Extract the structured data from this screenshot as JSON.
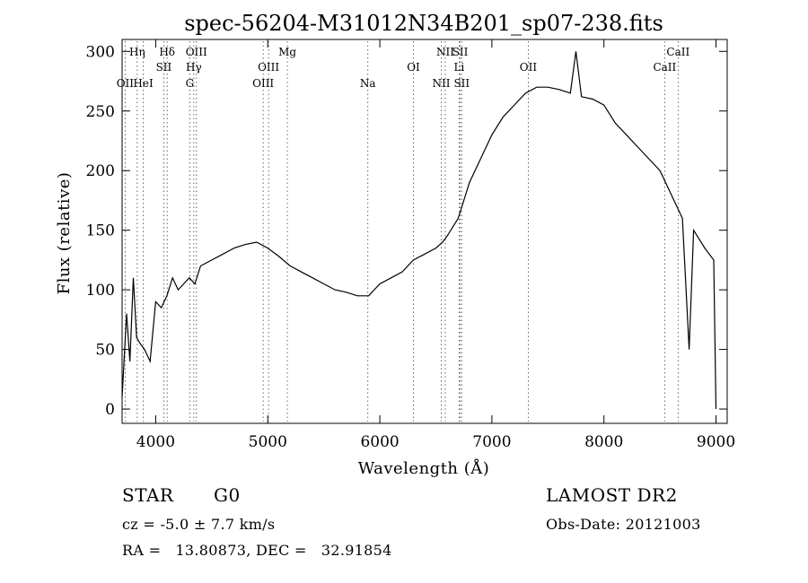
{
  "chart_data": {
    "type": "line",
    "title": "spec-56204-M31012N34B201_sp07-238.fits",
    "xlabel": "Wavelength (Å)",
    "ylabel": "Flux (relative)",
    "xlim": [
      3700,
      9100
    ],
    "ylim": [
      -12,
      310
    ],
    "x_ticks": [
      4000,
      5000,
      6000,
      7000,
      8000,
      9000
    ],
    "y_ticks": [
      0,
      50,
      100,
      150,
      200,
      250,
      300
    ],
    "grid": false,
    "series": [
      {
        "x": [
          3700,
          3740,
          3770,
          3800,
          3830,
          3860,
          3900,
          3950,
          4000,
          4050,
          4100,
          4150,
          4200,
          4250,
          4300,
          4350,
          4400,
          4500,
          4600,
          4700,
          4800,
          4900,
          5000,
          5100,
          5200,
          5300,
          5400,
          5500,
          5600,
          5700,
          5800,
          5900,
          6000,
          6100,
          6200,
          6300,
          6400,
          6500,
          6560,
          6600,
          6700,
          6800,
          6900,
          7000,
          7100,
          7200,
          7300,
          7400,
          7500,
          7600,
          7700,
          7750,
          7800,
          7900,
          8000,
          8100,
          8200,
          8300,
          8400,
          8500,
          8600,
          8700,
          8760,
          8800,
          8900,
          8980,
          9000
        ],
        "y": [
          10,
          80,
          40,
          110,
          60,
          55,
          50,
          40,
          90,
          85,
          95,
          110,
          100,
          105,
          110,
          105,
          120,
          125,
          130,
          135,
          138,
          140,
          135,
          128,
          120,
          115,
          110,
          105,
          100,
          98,
          95,
          95,
          105,
          110,
          115,
          125,
          130,
          135,
          140,
          145,
          160,
          190,
          210,
          230,
          245,
          255,
          265,
          270,
          270,
          268,
          265,
          300,
          262,
          260,
          255,
          240,
          230,
          220,
          210,
          200,
          180,
          160,
          50,
          150,
          135,
          125,
          0
        ]
      }
    ],
    "line_labels": [
      {
        "text": "Hη",
        "wl": 3835,
        "row": 1
      },
      {
        "text": "OII",
        "wl": 3727,
        "row": 3
      },
      {
        "text": "HeI",
        "wl": 3889,
        "row": 3
      },
      {
        "text": "Hδ",
        "wl": 4102,
        "row": 1
      },
      {
        "text": "SII",
        "wl": 4072,
        "row": 2
      },
      {
        "text": "OIII",
        "wl": 4363,
        "row": 1
      },
      {
        "text": "Hγ",
        "wl": 4340,
        "row": 2
      },
      {
        "text": "G",
        "wl": 4304,
        "row": 3
      },
      {
        "text": "Mg",
        "wl": 5175,
        "row": 1
      },
      {
        "text": "OIII",
        "wl": 5007,
        "row": 2
      },
      {
        "text": "OIII",
        "wl": 4959,
        "row": 3
      },
      {
        "text": "Na",
        "wl": 5893,
        "row": 3
      },
      {
        "text": "NII",
        "wl": 6584,
        "row": 1
      },
      {
        "text": "SII",
        "wl": 6717,
        "row": 1
      },
      {
        "text": "OI",
        "wl": 6300,
        "row": 2
      },
      {
        "text": "Li",
        "wl": 6708,
        "row": 2
      },
      {
        "text": "NII",
        "wl": 6548,
        "row": 3
      },
      {
        "text": "SII",
        "wl": 6731,
        "row": 3
      },
      {
        "text": "OII",
        "wl": 7325,
        "row": 2
      },
      {
        "text": "CaII",
        "wl": 8662,
        "row": 1
      },
      {
        "text": "CaII",
        "wl": 8542,
        "row": 2
      }
    ]
  },
  "info": {
    "object_class": "STAR",
    "subclass": "G0",
    "survey": "LAMOST DR2",
    "redshift": "cz = -5.0 ± 7.7 km/s",
    "obs_date": "Obs-Date: 20121003",
    "coords": "RA =   13.80873, DEC =   32.91854"
  }
}
